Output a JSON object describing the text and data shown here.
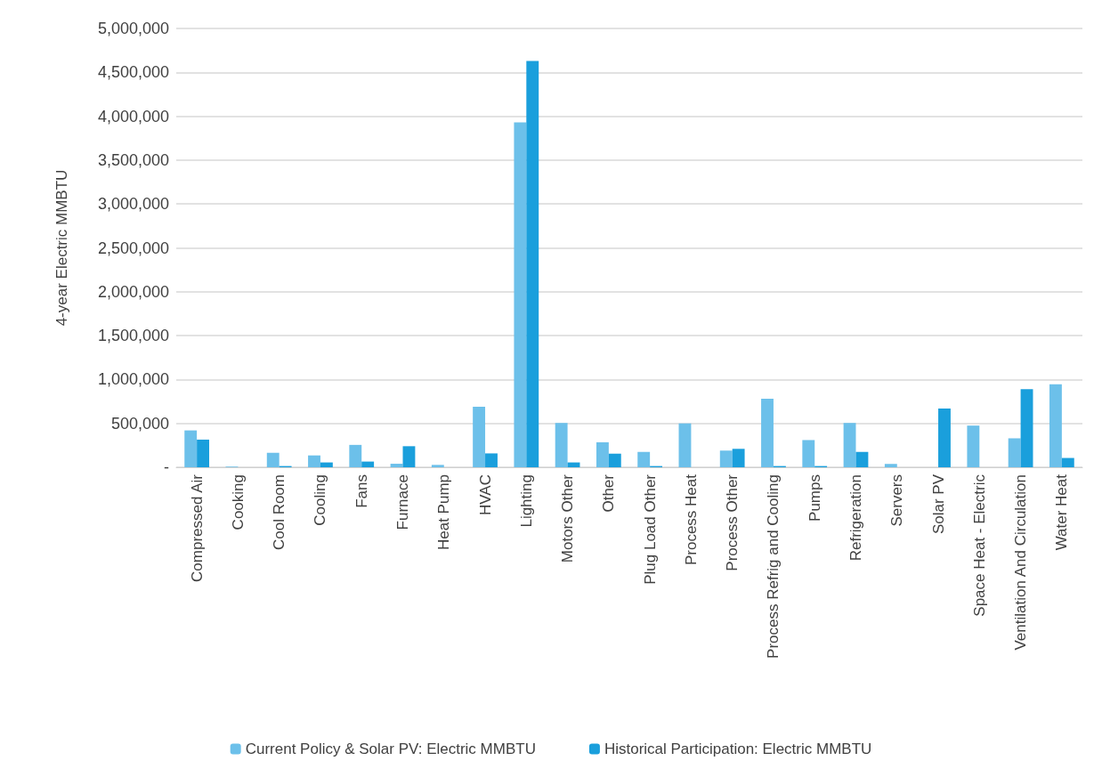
{
  "chart_data": {
    "type": "bar",
    "ylabel": "4-year Electric MMBTU",
    "categories": [
      "Compressed Air",
      "Cooking",
      "Cool Room",
      "Cooling",
      "Fans",
      "Furnace",
      "Heat Pump",
      "HVAC",
      "Lighting",
      "Motors Other",
      "Other",
      "Plug Load Other",
      "Process Heat",
      "Process Other",
      "Process Refrig and Cooling",
      "Pumps",
      "Refrigeration",
      "Servers",
      "Solar PV",
      "Space Heat - Electric",
      "Ventilation And Circulation",
      "Water Heat"
    ],
    "series": [
      {
        "name": "Current Policy & Solar PV: Electric MMBTU",
        "color": "#6cc0ea",
        "values": [
          420000,
          8000,
          165000,
          135000,
          255000,
          40000,
          27000,
          690000,
          3930000,
          505000,
          285000,
          175000,
          500000,
          190000,
          780000,
          310000,
          505000,
          38000,
          0,
          475000,
          330000,
          945000
        ]
      },
      {
        "name": "Historical Participation: Electric MMBTU",
        "color": "#1a9fdc",
        "values": [
          315000,
          0,
          14000,
          55000,
          65000,
          240000,
          0,
          158000,
          4630000,
          55000,
          155000,
          14000,
          0,
          210000,
          14000,
          14000,
          175000,
          0,
          670000,
          0,
          890000,
          106000
        ]
      }
    ],
    "ylim": [
      0,
      5000000
    ],
    "yticks": [
      {
        "value": 0,
        "label": "-"
      },
      {
        "value": 500000,
        "label": "500,000"
      },
      {
        "value": 1000000,
        "label": "1,000,000"
      },
      {
        "value": 1500000,
        "label": "1,500,000"
      },
      {
        "value": 2000000,
        "label": "2,000,000"
      },
      {
        "value": 2500000,
        "label": "2,500,000"
      },
      {
        "value": 3000000,
        "label": "3,000,000"
      },
      {
        "value": 3500000,
        "label": "3,500,000"
      },
      {
        "value": 4000000,
        "label": "4,000,000"
      },
      {
        "value": 4500000,
        "label": "4,500,000"
      },
      {
        "value": 5000000,
        "label": "5,000,000"
      }
    ],
    "grid": "y",
    "legend": "bottom"
  }
}
